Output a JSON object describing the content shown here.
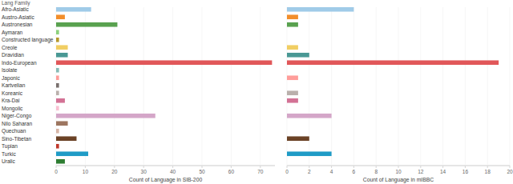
{
  "chart_data": [
    {
      "type": "bar",
      "orientation": "horizontal",
      "y_label": "Lang Family",
      "x_label": "Count of Language in SIB-200",
      "categories": [
        "Afro-Asiatic",
        "Austro-Asiatic",
        "Austronesian",
        "Aymaran",
        "Constructed language",
        "Creole",
        "Dravidian",
        "Indo-European",
        "Isolate",
        "Japonic",
        "Kartvelian",
        "Koreanic",
        "Kra-Dai",
        "Mongolic",
        "Niger-Congo",
        "Nilo Saharan",
        "Quechuan",
        "Sino-Tibetan",
        "Tupian",
        "Turkic",
        "Uralic"
      ],
      "values": [
        12,
        3,
        21,
        1,
        1,
        4,
        4,
        74,
        1,
        1,
        1,
        1,
        3,
        1,
        34,
        4,
        1,
        7,
        1,
        11,
        3
      ],
      "colors": [
        "#a0cbe8",
        "#f28e2b",
        "#59a14f",
        "#8cd17d",
        "#b6992d",
        "#f1ce63",
        "#499894",
        "#e15759",
        "#86bcb6",
        "#ff9d9a",
        "#79706e",
        "#bab0ac",
        "#d37295",
        "#fabfd2",
        "#d4a6c8",
        "#9d7660",
        "#d7b5a6",
        "#6b4226",
        "#c0392b",
        "#1f9bc6",
        "#2e7d32"
      ],
      "xlim": [
        0,
        75
      ],
      "xticks": [
        0,
        10,
        20,
        30,
        40,
        50,
        60,
        70
      ]
    },
    {
      "type": "bar",
      "orientation": "horizontal",
      "x_label": "Count of Language in mIBBC",
      "tick_labels": "x",
      "categories": [
        "Afro-Asiatic",
        "Austro-Asiatic",
        "Austronesian",
        "Aymaran",
        "Constructed language",
        "Creole",
        "Dravidian",
        "Indo-European",
        "Isolate",
        "Japonic",
        "Kartvelian",
        "Koreanic",
        "Kra-Dai",
        "Mongolic",
        "Niger-Congo",
        "Nilo Saharan",
        "Quechuan",
        "Sino-Tibetan",
        "Tupian",
        "Turkic",
        "Uralic"
      ],
      "values": [
        6,
        1,
        1,
        0,
        0,
        1,
        2,
        19,
        0,
        1,
        0,
        1,
        1,
        0,
        4,
        0,
        0,
        2,
        0,
        4,
        0
      ],
      "colors": [
        "#a0cbe8",
        "#f28e2b",
        "#59a14f",
        "#8cd17d",
        "#b6992d",
        "#f1ce63",
        "#499894",
        "#e15759",
        "#86bcb6",
        "#ff9d9a",
        "#79706e",
        "#bab0ac",
        "#d37295",
        "#fabfd2",
        "#d4a6c8",
        "#9d7660",
        "#d7b5a6",
        "#6b4226",
        "#c0392b",
        "#1f9bc6",
        "#2e7d32"
      ],
      "xlim": [
        0,
        20
      ],
      "xticks": [
        0,
        2,
        4,
        6,
        8,
        10,
        12,
        14,
        16,
        18,
        20
      ]
    }
  ]
}
